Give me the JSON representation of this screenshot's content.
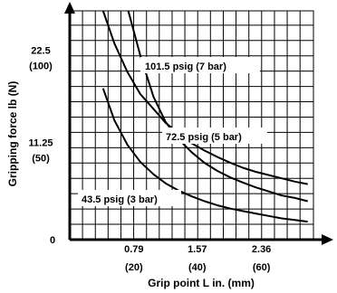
{
  "chart_data": {
    "type": "line",
    "xlabel": "Grip point L in. (mm)",
    "ylabel": "Gripping force lb (N)",
    "xlim": [
      0,
      3.0
    ],
    "ylim": [
      0,
      28
    ],
    "grid": true,
    "x_ticks": [
      {
        "value": 0.79,
        "label": "0.79",
        "sublabel": "(20)"
      },
      {
        "value": 1.57,
        "label": "1.57",
        "sublabel": "(40)"
      },
      {
        "value": 2.36,
        "label": "2.36",
        "sublabel": "(60)"
      }
    ],
    "y_ticks": [
      {
        "value": 0,
        "label": "0",
        "sublabel": ""
      },
      {
        "value": 11.25,
        "label": "11.25",
        "sublabel": "(50)"
      },
      {
        "value": 22.5,
        "label": "22.5",
        "sublabel": "(100)"
      }
    ],
    "series": [
      {
        "name": "101.5 psig (7 bar)",
        "x": [
          0.41,
          0.55,
          0.71,
          0.87,
          1.03,
          1.18,
          1.34,
          1.5,
          1.66,
          1.82,
          1.98,
          2.13,
          2.29,
          2.45,
          2.61,
          2.77,
          2.93
        ],
        "y": [
          28.0,
          24.0,
          20.5,
          17.8,
          16.0,
          14.3,
          13.0,
          11.8,
          10.9,
          10.1,
          9.4,
          8.8,
          8.3,
          7.9,
          7.5,
          7.1,
          6.8
        ]
      },
      {
        "name": "72.5 psig (5 bar)",
        "x": [
          0.72,
          0.87,
          1.03,
          1.18,
          1.34,
          1.5,
          1.66,
          1.82,
          1.98,
          2.13,
          2.29,
          2.45,
          2.61,
          2.77,
          2.93
        ],
        "y": [
          28.0,
          22.5,
          17.5,
          14.4,
          12.3,
          10.7,
          9.4,
          8.4,
          7.6,
          7.0,
          6.4,
          5.9,
          5.4,
          5.1,
          4.7
        ]
      },
      {
        "name": "43.5 psig (3 bar)",
        "x": [
          0.41,
          0.55,
          0.71,
          0.87,
          1.03,
          1.18,
          1.34,
          1.5,
          1.66,
          1.82,
          1.98,
          2.13,
          2.29,
          2.45,
          2.61,
          2.77,
          2.93
        ],
        "y": [
          18.5,
          14.6,
          11.6,
          9.5,
          8.0,
          6.9,
          6.0,
          5.3,
          4.7,
          4.2,
          3.8,
          3.5,
          3.2,
          2.9,
          2.6,
          2.4,
          2.2
        ]
      }
    ]
  }
}
